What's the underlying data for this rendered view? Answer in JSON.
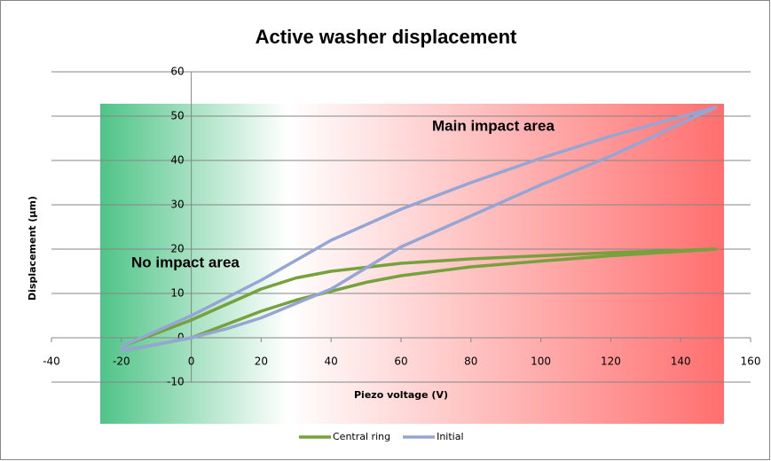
{
  "chart_data": {
    "type": "line",
    "title": "Active washer displacement",
    "xlabel": "Piezo voltage (V)",
    "ylabel": "Displacement  (µm)",
    "annotations": [
      "No impact area",
      "Main impact area"
    ],
    "xlim": [
      -40,
      160
    ],
    "xticks": [
      -40,
      -20,
      0,
      20,
      40,
      60,
      80,
      100,
      120,
      140,
      160
    ],
    "ylim": [
      -10,
      60
    ],
    "yticks": [
      -10,
      0,
      10,
      20,
      30,
      40,
      50,
      60
    ],
    "grid": true,
    "legend": "bottom",
    "series": [
      {
        "name": "Central ring",
        "color": "#77a13c",
        "x": [
          -20,
          -10,
          0,
          10,
          20,
          30,
          40,
          50,
          60,
          80,
          100,
          120,
          150,
          120,
          100,
          80,
          60,
          40,
          30,
          20,
          10,
          0,
          -10,
          -20
        ],
        "values": [
          -3,
          -1.5,
          0,
          3,
          6,
          8.5,
          10.5,
          12.5,
          14,
          16,
          17.3,
          18.5,
          20,
          19.2,
          18.5,
          17.8,
          16.8,
          15,
          13.5,
          11,
          7.5,
          4,
          1,
          -2
        ]
      },
      {
        "name": "Initial",
        "color": "#95a6d4",
        "x": [
          -20,
          -10,
          0,
          10,
          20,
          40,
          60,
          80,
          100,
          120,
          150,
          120,
          100,
          80,
          60,
          40,
          20,
          10,
          0,
          -10,
          -20
        ],
        "values": [
          -2,
          1.5,
          5,
          9,
          13,
          22,
          29,
          35,
          40.5,
          45.5,
          52,
          41,
          34.5,
          27.5,
          20.5,
          11,
          4.5,
          2,
          0,
          -1.5,
          -3
        ]
      }
    ]
  }
}
